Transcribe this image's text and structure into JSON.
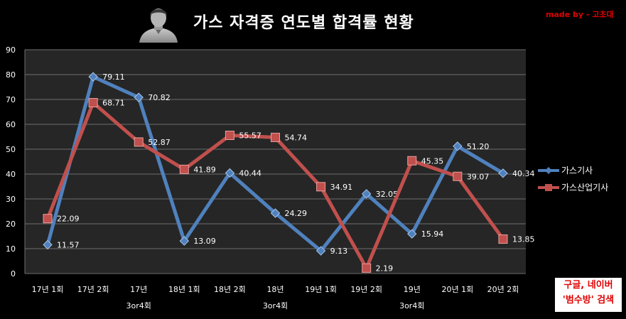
{
  "header": {
    "title": "가스 자격증 연도별 합격률 현황",
    "credit": "made by - 고초대"
  },
  "footer": {
    "search_line1": "구글, 네이버",
    "search_line2": "'범수방' 검색"
  },
  "colors": {
    "background": "#000000",
    "plot_area": "#262626",
    "grid": "#6e6e6e",
    "series_blue": "#4f81bd",
    "series_red": "#c0504d",
    "text": "#ffffff",
    "credit": "#e00000"
  },
  "icons": {
    "avatar": "person-silhouette-icon"
  },
  "chart_data": {
    "type": "line",
    "title": "가스 자격증 연도별 합격률 현황",
    "categories": [
      [
        "17년 1회"
      ],
      [
        "17년 2회"
      ],
      [
        "17년",
        "3or4회"
      ],
      [
        "18년 1회"
      ],
      [
        "18년 2회"
      ],
      [
        "18년",
        "3or4회"
      ],
      [
        "19년 1회"
      ],
      [
        "19년 2회"
      ],
      [
        "19년",
        "3or4회"
      ],
      [
        "20년 1회"
      ],
      [
        "20년 2회"
      ]
    ],
    "ylim": [
      0,
      90
    ],
    "yticks": [
      0,
      10,
      20,
      30,
      40,
      50,
      60,
      70,
      80,
      90
    ],
    "grid": true,
    "legend_position": "right",
    "series": [
      {
        "name": "가스기사",
        "color": "#4f81bd",
        "marker": "diamond",
        "values": [
          11.57,
          79.11,
          70.82,
          13.09,
          40.44,
          24.29,
          9.13,
          32.05,
          15.94,
          51.2,
          40.34
        ],
        "labels": [
          "11.57",
          "79.11",
          "70.82",
          "13.09",
          "40.44",
          "24.29",
          "9.13",
          "32.05",
          "15.94",
          "51.20",
          "40.34"
        ]
      },
      {
        "name": "가스산업기사",
        "color": "#c0504d",
        "marker": "square",
        "values": [
          22.09,
          68.71,
          52.87,
          41.89,
          55.57,
          54.74,
          34.91,
          2.19,
          45.35,
          39.07,
          13.85
        ],
        "labels": [
          "22.09",
          "68.71",
          "52.87",
          "41.89",
          "55.57",
          "54.74",
          "34.91",
          "2.19",
          "45.35",
          "39.07",
          "13.85"
        ]
      }
    ]
  }
}
